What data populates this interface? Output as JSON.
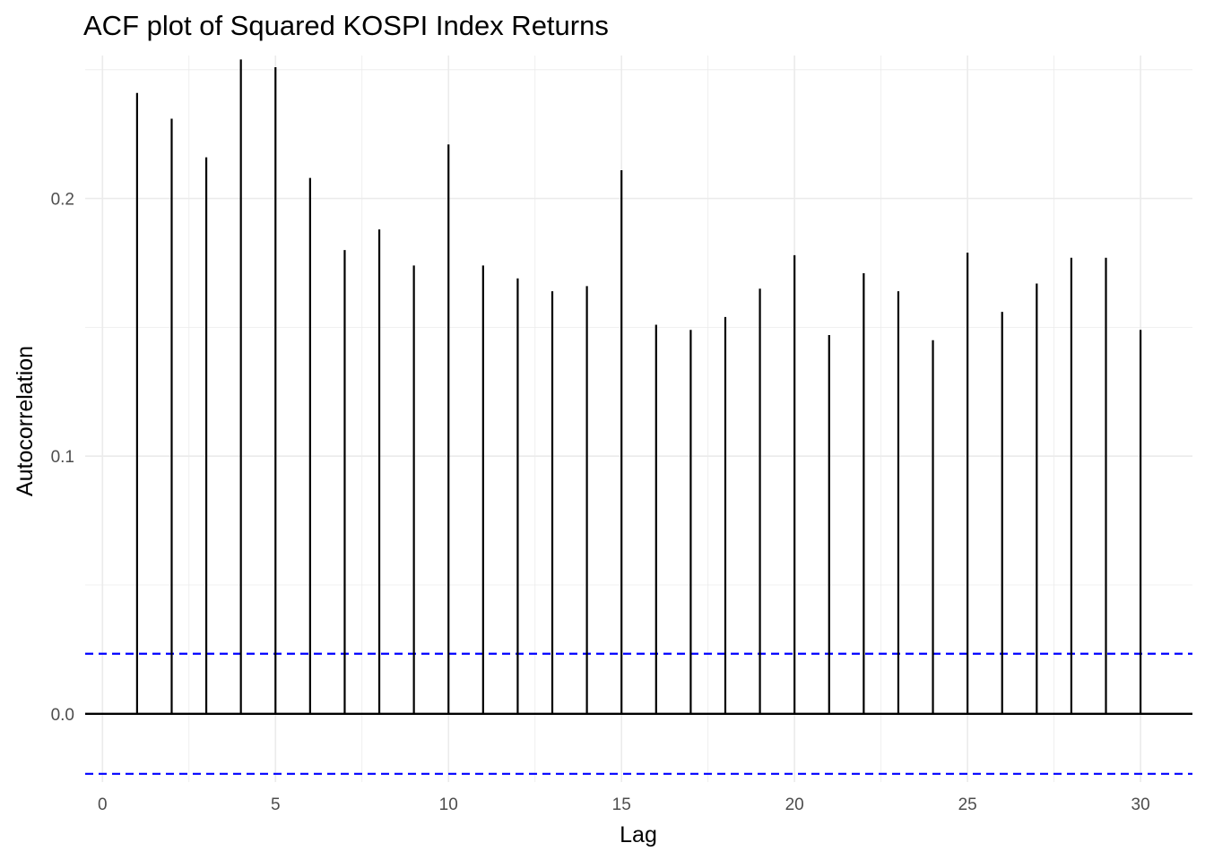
{
  "chart_data": {
    "type": "bar",
    "subtype": "acf-lollipop",
    "title": "ACF plot of Squared KOSPI Index Returns",
    "xlabel": "Lag",
    "ylabel": "Autocorrelation",
    "xlim": [
      -0.5,
      31.5
    ],
    "ylim": [
      -0.0265,
      0.2555
    ],
    "x_ticks": [
      0,
      5,
      10,
      15,
      20,
      25,
      30
    ],
    "x_tick_labels": [
      "0",
      "5",
      "10",
      "15",
      "20",
      "25",
      "30"
    ],
    "y_ticks": [
      0.0,
      0.1,
      0.2
    ],
    "y_tick_labels": [
      "0.0",
      "0.1",
      "0.2"
    ],
    "y_minor_ticks": [
      0.05,
      0.15,
      0.25
    ],
    "grid": true,
    "lags": [
      1,
      2,
      3,
      4,
      5,
      6,
      7,
      8,
      9,
      10,
      11,
      12,
      13,
      14,
      15,
      16,
      17,
      18,
      19,
      20,
      21,
      22,
      23,
      24,
      25,
      26,
      27,
      28,
      29,
      30
    ],
    "values": [
      0.241,
      0.231,
      0.216,
      0.254,
      0.251,
      0.208,
      0.18,
      0.188,
      0.174,
      0.221,
      0.174,
      0.169,
      0.164,
      0.166,
      0.211,
      0.151,
      0.149,
      0.154,
      0.165,
      0.178,
      0.147,
      0.171,
      0.164,
      0.145,
      0.179,
      0.156,
      0.167,
      0.177,
      0.177,
      0.149
    ],
    "confidence_bounds": [
      0.0233,
      -0.0233
    ],
    "colors": {
      "bars": "#000000",
      "confidence": "#0000ff",
      "zero_line": "#000000",
      "grid": "#ebebeb"
    }
  }
}
